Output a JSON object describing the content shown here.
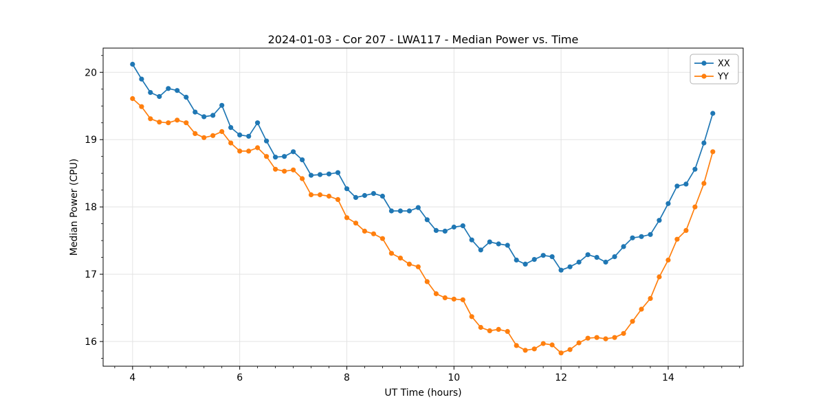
{
  "chart": {
    "title": "2024-01-03 - Cor 207 - LWA117 - Median Power vs. Time",
    "xlabel": "UT Time (hours)",
    "ylabel": "Median Power (CPU)"
  },
  "chart_data": {
    "type": "line",
    "title": "2024-01-03 - Cor 207 - LWA117 - Median Power vs. Time",
    "xlabel": "UT Time (hours)",
    "ylabel": "Median Power (CPU)",
    "grid": true,
    "legend_position": "upper right",
    "marker": "o",
    "xlim": [
      3.45,
      15.4
    ],
    "ylim": [
      15.633,
      20.36
    ],
    "x_major_ticks": [
      4,
      6,
      8,
      10,
      12,
      14
    ],
    "y_major_ticks": [
      16,
      17,
      18,
      19,
      20
    ],
    "x_minor_step": 0.33333,
    "y_minor_step": 0.25,
    "x": [
      4.0,
      4.167,
      4.333,
      4.5,
      4.667,
      4.833,
      5.0,
      5.167,
      5.333,
      5.5,
      5.667,
      5.833,
      6.0,
      6.167,
      6.333,
      6.5,
      6.667,
      6.833,
      7.0,
      7.167,
      7.333,
      7.5,
      7.667,
      7.833,
      8.0,
      8.167,
      8.333,
      8.5,
      8.667,
      8.833,
      9.0,
      9.167,
      9.333,
      9.5,
      9.667,
      9.833,
      10.0,
      10.167,
      10.333,
      10.5,
      10.667,
      10.833,
      11.0,
      11.167,
      11.333,
      11.5,
      11.667,
      11.833,
      12.0,
      12.167,
      12.333,
      12.5,
      12.667,
      12.833,
      13.0,
      13.167,
      13.333,
      13.5,
      13.667,
      13.833,
      14.0,
      14.167,
      14.333,
      14.5,
      14.667,
      14.833
    ],
    "series": [
      {
        "name": "XX",
        "color": "#1f77b4",
        "values": [
          20.12,
          19.9,
          19.7,
          19.64,
          19.76,
          19.73,
          19.63,
          19.41,
          19.34,
          19.36,
          19.51,
          19.18,
          19.07,
          19.05,
          19.25,
          18.98,
          18.74,
          18.75,
          18.82,
          18.7,
          18.47,
          18.48,
          18.49,
          18.51,
          18.27,
          18.14,
          18.17,
          18.2,
          18.16,
          17.94,
          17.94,
          17.94,
          17.99,
          17.81,
          17.65,
          17.64,
          17.7,
          17.72,
          17.51,
          17.36,
          17.48,
          17.45,
          17.43,
          17.21,
          17.15,
          17.22,
          17.28,
          17.26,
          17.06,
          17.11,
          17.18,
          17.29,
          17.25,
          17.18,
          17.26,
          17.41,
          17.54,
          17.56,
          17.59,
          17.8,
          18.05,
          18.31,
          18.34,
          18.56,
          18.95,
          19.39
        ]
      },
      {
        "name": "YY",
        "color": "#ff7f0e",
        "values": [
          19.61,
          19.49,
          19.31,
          19.26,
          19.25,
          19.29,
          19.25,
          19.09,
          19.03,
          19.06,
          19.12,
          18.95,
          18.83,
          18.83,
          18.88,
          18.75,
          18.56,
          18.53,
          18.55,
          18.42,
          18.18,
          18.18,
          18.16,
          18.11,
          17.84,
          17.76,
          17.64,
          17.6,
          17.53,
          17.31,
          17.24,
          17.15,
          17.11,
          16.89,
          16.71,
          16.65,
          16.63,
          16.62,
          16.37,
          16.21,
          16.16,
          16.18,
          16.15,
          15.94,
          15.87,
          15.89,
          15.97,
          15.95,
          15.83,
          15.88,
          15.98,
          16.05,
          16.06,
          16.04,
          16.06,
          16.12,
          16.3,
          16.48,
          16.64,
          16.96,
          17.21,
          17.52,
          17.65,
          18.0,
          18.35,
          18.82
        ]
      }
    ]
  }
}
